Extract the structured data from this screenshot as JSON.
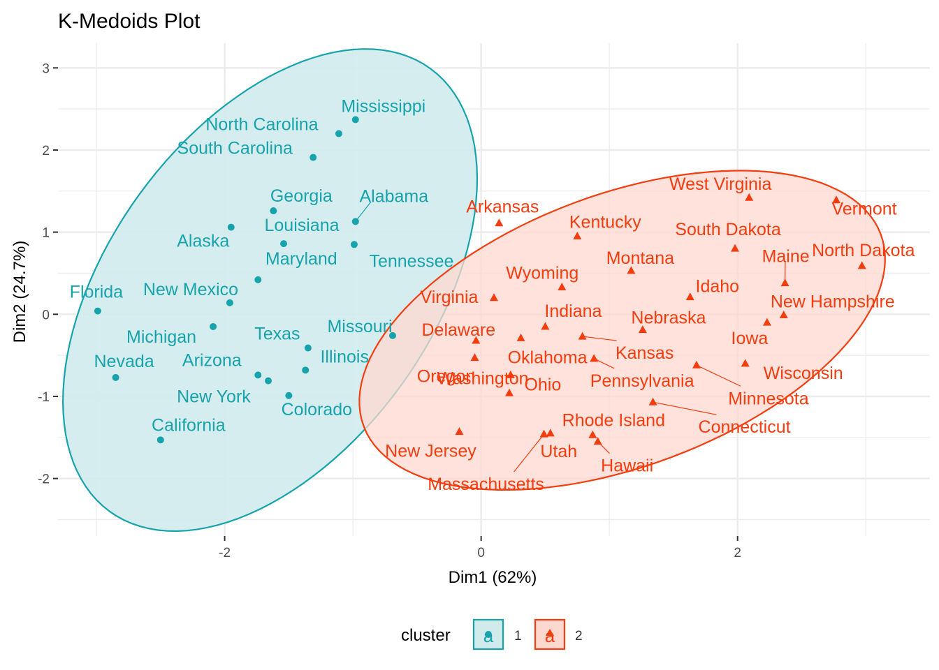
{
  "chart_data": {
    "type": "scatter",
    "title": "K-Medoids Plot",
    "xlabel": "Dim1 (62%)",
    "ylabel": "Dim2 (24.7%)",
    "xlim": [
      -3.3,
      3.5
    ],
    "ylim": [
      -2.7,
      3.3
    ],
    "x_ticks": [
      -2,
      0,
      2
    ],
    "y_ticks": [
      -2,
      -1,
      0,
      1,
      2,
      3
    ],
    "grid": true,
    "legend": {
      "title": "cluster",
      "position": "bottom",
      "entries": [
        {
          "label": "1",
          "color": "#17A3AC",
          "fill": "#D1EBED",
          "marker": "circle"
        },
        {
          "label": "2",
          "color": "#F43D0F",
          "fill": "#FDD8CF",
          "marker": "triangle"
        }
      ]
    },
    "colors": {
      "cluster_1": "#17A3AC",
      "cluster_2": "#F43D0F",
      "cluster_1_fill": "#D1EBED",
      "cluster_2_fill": "#FDD8CF",
      "panel_background": "#FFFFFF",
      "gridline": "#EBEBEB"
    },
    "series": [
      {
        "name": "1",
        "marker": "circle",
        "points": [
          {
            "label": "Mississippi",
            "x": -0.98,
            "y": 2.37
          },
          {
            "label": "North Carolina",
            "x": -1.11,
            "y": 2.2
          },
          {
            "label": "South Carolina",
            "x": -1.31,
            "y": 1.91
          },
          {
            "label": "Georgia",
            "x": -1.62,
            "y": 1.26
          },
          {
            "label": "Alabama",
            "x": -0.98,
            "y": 1.13
          },
          {
            "label": "Louisiana",
            "x": -1.54,
            "y": 0.86
          },
          {
            "label": "Alaska",
            "x": -1.95,
            "y": 1.06
          },
          {
            "label": "Tennessee",
            "x": -0.99,
            "y": 0.85
          },
          {
            "label": "Maryland",
            "x": -1.74,
            "y": 0.42
          },
          {
            "label": "New Mexico",
            "x": -1.96,
            "y": 0.14
          },
          {
            "label": "Florida",
            "x": -2.99,
            "y": 0.04
          },
          {
            "label": "Michigan",
            "x": -2.09,
            "y": -0.15
          },
          {
            "label": "Missouri",
            "x": -0.69,
            "y": -0.26
          },
          {
            "label": "Texas",
            "x": -1.35,
            "y": -0.41
          },
          {
            "label": "Illinois",
            "x": -1.37,
            "y": -0.68
          },
          {
            "label": "Arizona",
            "x": -1.74,
            "y": -0.74
          },
          {
            "label": "Nevada",
            "x": -2.85,
            "y": -0.77
          },
          {
            "label": "New York",
            "x": -1.66,
            "y": -0.81
          },
          {
            "label": "Colorado",
            "x": -1.5,
            "y": -0.99
          },
          {
            "label": "California",
            "x": -2.5,
            "y": -1.53
          }
        ]
      },
      {
        "name": "2",
        "marker": "triangle",
        "points": [
          {
            "label": "West Virginia",
            "x": 2.09,
            "y": 1.42
          },
          {
            "label": "Vermont",
            "x": 2.77,
            "y": 1.39
          },
          {
            "label": "Arkansas",
            "x": 0.14,
            "y": 1.11
          },
          {
            "label": "Kentucky",
            "x": 0.75,
            "y": 0.95
          },
          {
            "label": "South Dakota",
            "x": 1.98,
            "y": 0.8
          },
          {
            "label": "North Dakota",
            "x": 2.97,
            "y": 0.59
          },
          {
            "label": "Montana",
            "x": 1.17,
            "y": 0.53
          },
          {
            "label": "Maine",
            "x": 2.37,
            "y": 0.38
          },
          {
            "label": "Wyoming",
            "x": 0.63,
            "y": 0.33
          },
          {
            "label": "Idaho",
            "x": 1.63,
            "y": 0.21
          },
          {
            "label": "Virginia",
            "x": 0.1,
            "y": 0.2
          },
          {
            "label": "New Hampshire",
            "x": 2.36,
            "y": -0.01
          },
          {
            "label": "Indiana",
            "x": 0.5,
            "y": -0.15
          },
          {
            "label": "Iowa",
            "x": 2.23,
            "y": -0.1
          },
          {
            "label": "Nebraska",
            "x": 1.26,
            "y": -0.19
          },
          {
            "label": "Kansas",
            "x": 0.79,
            "y": -0.27
          },
          {
            "label": "Delaware",
            "x": -0.04,
            "y": -0.32
          },
          {
            "label": "Oklahoma",
            "x": 0.31,
            "y": -0.29
          },
          {
            "label": "Pennsylvania",
            "x": 0.88,
            "y": -0.54
          },
          {
            "label": "Oregon",
            "x": -0.05,
            "y": -0.53
          },
          {
            "label": "Wisconsin",
            "x": 2.06,
            "y": -0.6
          },
          {
            "label": "Minnesota",
            "x": 1.68,
            "y": -0.62
          },
          {
            "label": "Ohio",
            "x": 0.23,
            "y": -0.74
          },
          {
            "label": "Connecticut",
            "x": 1.34,
            "y": -1.07
          },
          {
            "label": "Washington",
            "x": 0.22,
            "y": -0.96
          },
          {
            "label": "Rhode Island",
            "x": 0.87,
            "y": -1.47
          },
          {
            "label": "New Jersey",
            "x": -0.17,
            "y": -1.43
          },
          {
            "label": "Utah",
            "x": 0.54,
            "y": -1.45
          },
          {
            "label": "Hawaii",
            "x": 0.91,
            "y": -1.55
          },
          {
            "label": "Massachusetts",
            "x": 0.49,
            "y": -1.46
          }
        ]
      }
    ]
  }
}
